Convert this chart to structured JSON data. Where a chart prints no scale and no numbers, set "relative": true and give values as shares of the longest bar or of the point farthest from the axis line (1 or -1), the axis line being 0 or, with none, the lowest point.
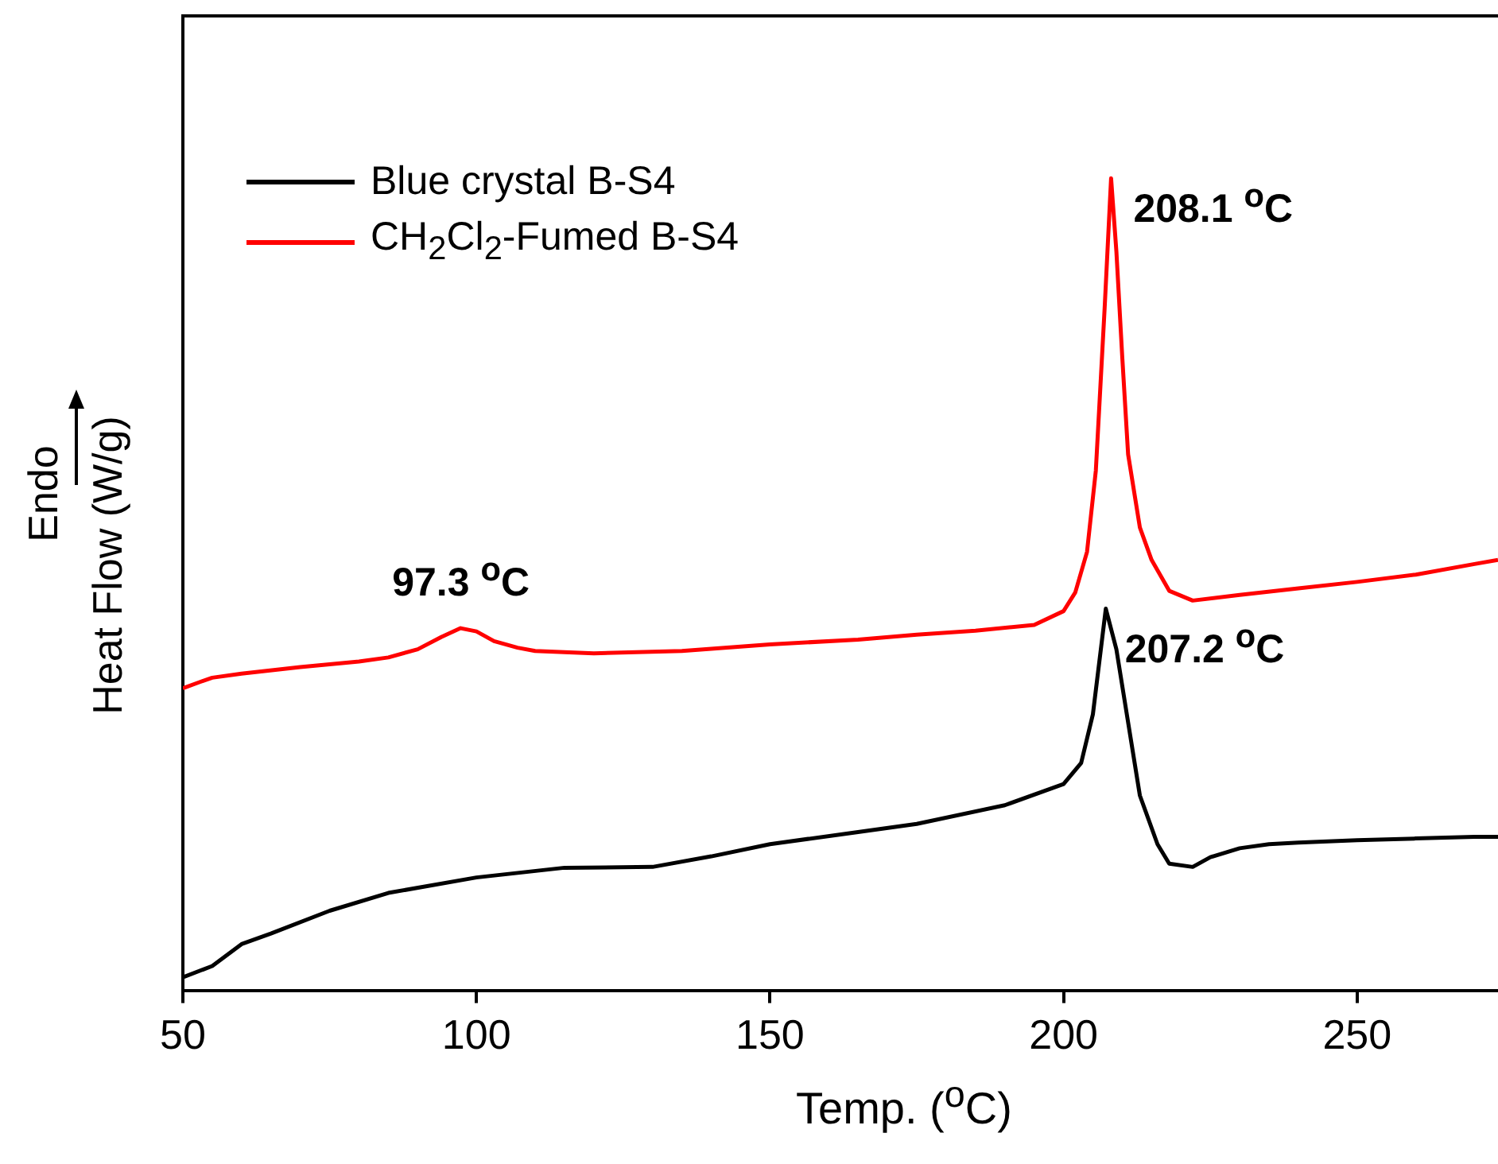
{
  "chart_data": {
    "type": "line",
    "relative": true,
    "xlabel": "Temp. ($^{o}$C)",
    "ylabel": "Heat Flow (W/g)",
    "xlim": [
      50,
      274
    ],
    "xticks": [
      50,
      100,
      150,
      200,
      250
    ],
    "grid": false,
    "legend": "top left",
    "marker": "none",
    "line_style": "solid",
    "annotations": [
      {
        "text": "208.1 $^{o}$C",
        "x": 208.1,
        "y": 1
      },
      {
        "text": "97.3 $^{o}$C",
        "x": 97.3,
        "y": 0.446
      },
      {
        "text": "207.2 $^{o}$C",
        "x": 207.2,
        "y": 0.47
      },
      "Endo"
    ],
    "series": [
      {
        "name": "Blue crystal B-S4",
        "color": "#000000",
        "x": [
          50,
          55,
          60,
          65,
          75,
          85,
          100,
          115,
          130,
          140,
          150,
          165,
          175,
          190,
          200,
          203,
          205,
          207.2,
          209,
          211,
          213,
          216,
          218,
          222,
          225,
          230,
          235,
          240,
          250,
          260,
          270,
          274
        ],
        "values": [
          0.016,
          0.03,
          0.057,
          0.07,
          0.098,
          0.12,
          0.139,
          0.151,
          0.152,
          0.165,
          0.18,
          0.195,
          0.205,
          0.228,
          0.254,
          0.28,
          0.34,
          0.47,
          0.42,
          0.33,
          0.24,
          0.18,
          0.156,
          0.152,
          0.164,
          0.175,
          0.18,
          0.182,
          0.185,
          0.187,
          0.189,
          0.189
        ]
      },
      {
        "name": "CH$_{2}$Cl$_{2}$-Fumed B-S4",
        "color": "#ff0000",
        "x": [
          50,
          53,
          55,
          60,
          70,
          80,
          85,
          90,
          94,
          97.3,
          100,
          103,
          107,
          110,
          120,
          135,
          150,
          165,
          175,
          185,
          195,
          200,
          202,
          204,
          205.5,
          207,
          208.1,
          209,
          210,
          211,
          213,
          215,
          218,
          222,
          230,
          240,
          250,
          260,
          270,
          274
        ],
        "values": [
          0.372,
          0.38,
          0.385,
          0.39,
          0.398,
          0.405,
          0.41,
          0.42,
          0.435,
          0.446,
          0.442,
          0.43,
          0.422,
          0.418,
          0.415,
          0.418,
          0.426,
          0.432,
          0.438,
          0.443,
          0.45,
          0.467,
          0.49,
          0.54,
          0.64,
          0.84,
          1,
          0.91,
          0.78,
          0.66,
          0.57,
          0.53,
          0.492,
          0.48,
          0.487,
          0.495,
          0.503,
          0.512,
          0.525,
          0.53
        ]
      }
    ]
  }
}
